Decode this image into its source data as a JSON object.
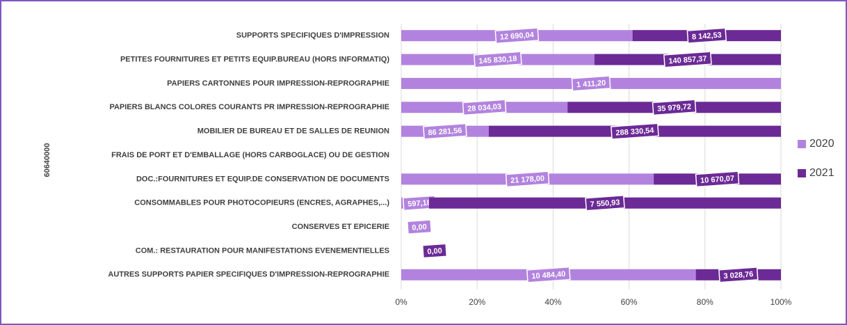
{
  "chart_data": {
    "type": "stacked_bar_100_horizontal",
    "y_axis_label": "60640000",
    "categories": [
      "SUPPORTS SPECIFIQUES D'IMPRESSION",
      "PETITES FOURNITURES ET PETITS EQUIP.BUREAU (HORS INFORMATIQ)",
      "PAPIERS CARTONNES POUR IMPRESSION-REPROGRAPHIE",
      "PAPIERS BLANCS COLORES COURANTS PR IMPRESSION-REPROGRAPHIE",
      "MOBILIER DE BUREAU ET DE SALLES DE REUNION",
      "FRAIS DE PORT ET D'EMBALLAGE (HORS CARBOGLACE) OU DE GESTION",
      "DOC.:FOURNITURES ET EQUIP.DE CONSERVATION DE DOCUMENTS",
      "CONSOMMABLES POUR PHOTOCOPIEURS (ENCRES, AGRAPHES,...)",
      "CONSERVES ET EPICERIE",
      "COM.: RESTAURATION POUR MANIFESTATIONS EVENEMENTIELLES",
      "AUTRES SUPPORTS PAPIER SPECIFIQUES D'IMPRESSION-REPROGRAPHIE"
    ],
    "series": [
      {
        "name": "2020",
        "color": "#b283de",
        "values": [
          12690.04,
          145830.18,
          1411.2,
          28034.03,
          86281.56,
          null,
          21178.0,
          597.18,
          0.0,
          null,
          10484.4
        ],
        "value_labels": [
          "12 690,04",
          "145 830,18",
          "1 411,20",
          "28 034,03",
          "86 281,56",
          null,
          "21 178,00",
          "597,18",
          "0,00",
          null,
          "10 484,40"
        ]
      },
      {
        "name": "2021",
        "color": "#6b2a95",
        "values": [
          8142.53,
          140857.37,
          null,
          35979.72,
          288330.54,
          null,
          10670.07,
          7550.93,
          null,
          0.0,
          3028.76
        ],
        "value_labels": [
          "8 142,53",
          "140 857,37",
          null,
          "35 979,72",
          "288 330,54",
          null,
          "10 670,07",
          "7 550,93",
          null,
          "0,00",
          "3 028,76"
        ]
      }
    ],
    "xlim": [
      0,
      100
    ],
    "xticks": [
      {
        "value": 0,
        "label": "0%"
      },
      {
        "value": 20,
        "label": "20%"
      },
      {
        "value": 40,
        "label": "40%"
      },
      {
        "value": 60,
        "label": "60%"
      },
      {
        "value": 80,
        "label": "80%"
      },
      {
        "value": 100,
        "label": "100%"
      }
    ],
    "grid": true,
    "legend": "right"
  }
}
